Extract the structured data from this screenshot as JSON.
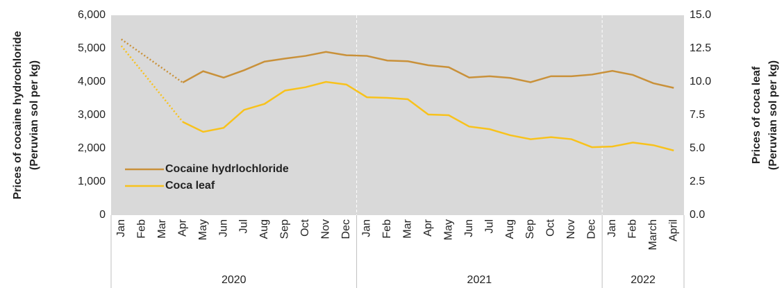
{
  "chart_data": {
    "type": "line",
    "categories": [
      "Jan",
      "Feb",
      "Mar",
      "Apr",
      "May",
      "Jun",
      "Jul",
      "Aug",
      "Sep",
      "Oct",
      "Nov",
      "Dec",
      "Jan",
      "Feb",
      "Mar",
      "Apr",
      "May",
      "Jun",
      "Jul",
      "Aug",
      "Sep",
      "Oct",
      "Nov",
      "Dec",
      "Jan",
      "Feb",
      "March",
      "April"
    ],
    "year_groups": [
      {
        "label": "2020",
        "count": 12
      },
      {
        "label": "2021",
        "count": 12
      },
      {
        "label": "2022",
        "count": 4
      }
    ],
    "y_label": [
      "Prices of cocaine hydrochloride",
      "(Peruvian sol per kg)"
    ],
    "y2_label": [
      "Prices of coca leaf",
      "(Peruvian sol per kg)"
    ],
    "ylim": [
      0,
      6000
    ],
    "yticks": [
      0,
      {
        "value": 1000,
        "label": "1,000"
      },
      {
        "value": 2000,
        "label": "2,000"
      },
      {
        "value": 3000,
        "label": "3,000"
      },
      {
        "value": 4000,
        "label": "4,000"
      },
      {
        "value": 5000,
        "label": "5,000"
      },
      {
        "value": 6000,
        "label": "6,000"
      }
    ],
    "y2lim": [
      0,
      15
    ],
    "y2ticks": [
      {
        "value": 0,
        "label": "0.0"
      },
      2.5,
      {
        "value": 5,
        "label": "5.0"
      },
      7.5,
      {
        "value": 10,
        "label": "10.0"
      },
      12.5,
      {
        "value": 15,
        "label": "15.0"
      }
    ],
    "legend": "lower left",
    "series": [
      {
        "name": "Cocaine hydrlochloride",
        "color": "#c9913a",
        "values": [
          5280,
          null,
          null,
          3980,
          4320,
          4130,
          4350,
          4610,
          4700,
          4780,
          4900,
          4800,
          4780,
          4640,
          4620,
          4500,
          4440,
          4130,
          4170,
          4120,
          3990,
          4170,
          4170,
          4220,
          4330,
          4210,
          3960,
          3820
        ]
      },
      {
        "name": "Coca leaf",
        "color": "#f8c21c",
        "axis": "y2",
        "values": [
          12.7,
          null,
          null,
          7.0,
          6.25,
          6.55,
          7.9,
          8.35,
          9.35,
          9.6,
          10.0,
          9.8,
          8.85,
          8.8,
          8.7,
          7.55,
          7.5,
          6.65,
          6.45,
          6.0,
          5.7,
          5.85,
          5.7,
          5.1,
          5.15,
          5.45,
          5.25,
          4.85
        ]
      }
    ]
  }
}
